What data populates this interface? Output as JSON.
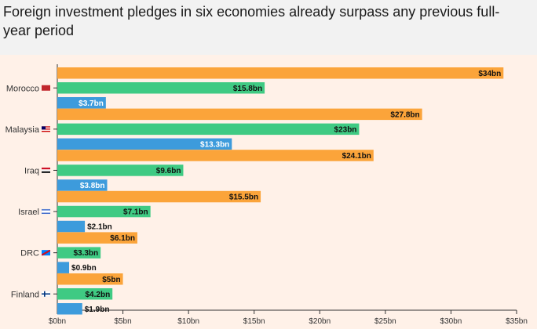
{
  "title": "Foreign investment pledges in six economies already surpass any previous full-year period",
  "colors": {
    "orange": "#fba43a",
    "green": "#3fca83",
    "blue": "#3d9bdc",
    "axis": "#333333",
    "background": "#fff1e8"
  },
  "flags": [
    "morocco-flag-icon",
    "malaysia-flag-icon",
    "iraq-flag-icon",
    "israel-flag-icon",
    "drc-flag-icon",
    "finland-flag-icon"
  ],
  "chart_data": {
    "type": "bar",
    "orientation": "horizontal",
    "categories": [
      "Morocco",
      "Malaysia",
      "Iraq",
      "Israel",
      "DRC",
      "Finland"
    ],
    "series": [
      {
        "color": "#fba43a",
        "values": [
          34,
          27.8,
          24.1,
          15.5,
          6.1,
          5
        ],
        "labels": [
          "$34bn",
          "$27.8bn",
          "$24.1bn",
          "$15.5bn",
          "$6.1bn",
          "$5bn"
        ]
      },
      {
        "color": "#3fca83",
        "values": [
          15.8,
          23,
          9.6,
          7.1,
          3.3,
          4.2
        ],
        "labels": [
          "$15.8bn",
          "$23bn",
          "$9.6bn",
          "$7.1bn",
          "$3.3bn",
          "$4.2bn"
        ]
      },
      {
        "color": "#3d9bdc",
        "values": [
          3.7,
          13.3,
          3.8,
          2.1,
          0.9,
          1.9
        ],
        "labels": [
          "$3.7bn",
          "$13.3bn",
          "$3.8bn",
          "$2.1bn",
          "$0.9bn",
          "$1.9bn"
        ]
      }
    ],
    "xlim": [
      0,
      35
    ],
    "xticks": [
      0,
      5,
      10,
      15,
      20,
      25,
      30,
      35
    ],
    "xtick_labels": [
      "$0bn",
      "$5bn",
      "$10bn",
      "$15bn",
      "$20bn",
      "$25bn",
      "$30bn",
      "$35bn"
    ],
    "grid": false,
    "legend": "none"
  }
}
